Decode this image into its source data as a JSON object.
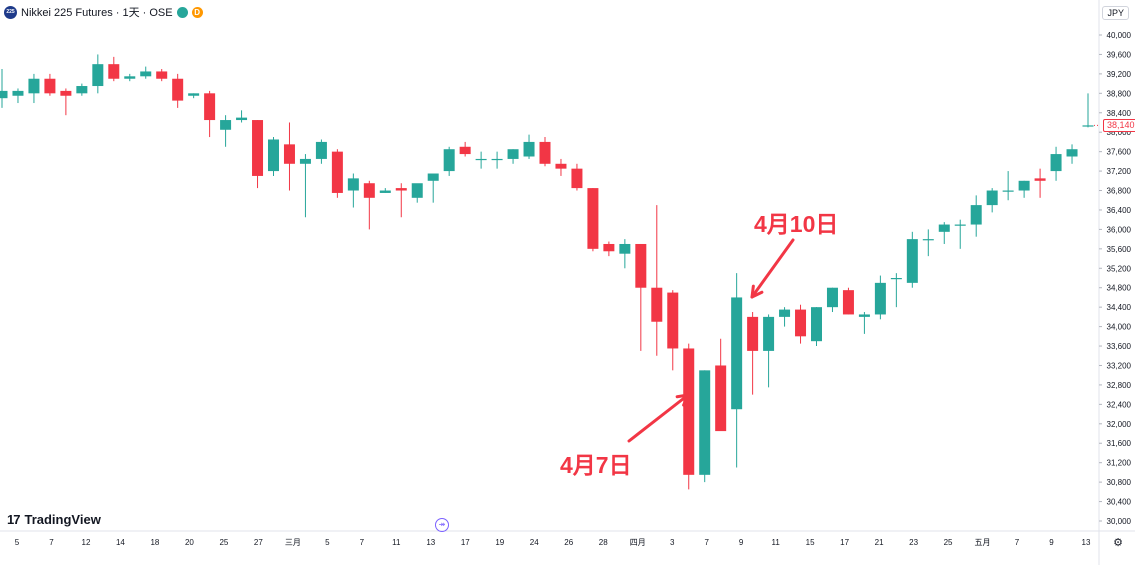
{
  "header": {
    "logo_text": "225",
    "title": "Nikkei 225 Futures · 1天 · OSE",
    "badge": "D"
  },
  "currency": "JPY",
  "last_price_label": "38,140",
  "brand": {
    "mark": "17",
    "name": "TradingView"
  },
  "goto_icon": "↠",
  "settings_icon": "⚙",
  "annotations": {
    "apr7": "4月7日",
    "apr10": "4月10日"
  },
  "colors": {
    "up": "#26a69a",
    "down": "#f23645",
    "annotation": "#f23645"
  },
  "chart_data": {
    "type": "candlestick",
    "y_axis": {
      "min": 30000,
      "max": 40000,
      "ticks": [
        "40,000",
        "39,600",
        "39,200",
        "38,800",
        "38,400",
        "38,000",
        "37,600",
        "37,200",
        "36,800",
        "36,400",
        "36,000",
        "35,600",
        "35,200",
        "34,800",
        "34,400",
        "34,000",
        "33,600",
        "33,200",
        "32,800",
        "32,400",
        "32,000",
        "31,600",
        "31,200",
        "30,800",
        "30,400",
        "30,000"
      ]
    },
    "x_ticks": [
      "5",
      "7",
      "12",
      "14",
      "18",
      "20",
      "25",
      "27",
      "三月",
      "5",
      "7",
      "11",
      "13",
      "17",
      "19",
      "24",
      "26",
      "28",
      "四月",
      "3",
      "7",
      "9",
      "11",
      "15",
      "17",
      "21",
      "23",
      "25",
      "五月",
      "7",
      "9",
      "13"
    ],
    "candles": [
      {
        "o": 38700,
        "h": 39300,
        "l": 38500,
        "c": 38850
      },
      {
        "o": 38750,
        "h": 38900,
        "l": 38600,
        "c": 38850
      },
      {
        "o": 38800,
        "h": 39200,
        "l": 38600,
        "c": 39100
      },
      {
        "o": 39100,
        "h": 39200,
        "l": 38750,
        "c": 38800
      },
      {
        "o": 38850,
        "h": 38900,
        "l": 38350,
        "c": 38750
      },
      {
        "o": 38800,
        "h": 39000,
        "l": 38750,
        "c": 38950
      },
      {
        "o": 38950,
        "h": 39600,
        "l": 38800,
        "c": 39400
      },
      {
        "o": 39400,
        "h": 39550,
        "l": 39050,
        "c": 39100
      },
      {
        "o": 39100,
        "h": 39200,
        "l": 39050,
        "c": 39150
      },
      {
        "o": 39150,
        "h": 39350,
        "l": 39100,
        "c": 39250
      },
      {
        "o": 39250,
        "h": 39300,
        "l": 39050,
        "c": 39100
      },
      {
        "o": 39100,
        "h": 39200,
        "l": 38500,
        "c": 38650
      },
      {
        "o": 38750,
        "h": 38800,
        "l": 38700,
        "c": 38800
      },
      {
        "o": 38800,
        "h": 38850,
        "l": 37900,
        "c": 38250
      },
      {
        "o": 38050,
        "h": 38350,
        "l": 37700,
        "c": 38250
      },
      {
        "o": 38250,
        "h": 38450,
        "l": 38200,
        "c": 38300
      },
      {
        "o": 38250,
        "h": 38250,
        "l": 36850,
        "c": 37100
      },
      {
        "o": 37200,
        "h": 37900,
        "l": 37100,
        "c": 37850
      },
      {
        "o": 37750,
        "h": 38200,
        "l": 36800,
        "c": 37350
      },
      {
        "o": 37350,
        "h": 37550,
        "l": 36250,
        "c": 37450
      },
      {
        "o": 37450,
        "h": 37850,
        "l": 37350,
        "c": 37800
      },
      {
        "o": 37600,
        "h": 37650,
        "l": 36650,
        "c": 36750
      },
      {
        "o": 36800,
        "h": 37150,
        "l": 36450,
        "c": 37050
      },
      {
        "o": 36950,
        "h": 37000,
        "l": 36000,
        "c": 36650
      },
      {
        "o": 36750,
        "h": 36850,
        "l": 36750,
        "c": 36800
      },
      {
        "o": 36850,
        "h": 36950,
        "l": 36250,
        "c": 36800
      },
      {
        "o": 36650,
        "h": 36850,
        "l": 36550,
        "c": 36950
      },
      {
        "o": 37000,
        "h": 37100,
        "l": 36550,
        "c": 37150
      },
      {
        "o": 37200,
        "h": 37700,
        "l": 37100,
        "c": 37650
      },
      {
        "o": 37700,
        "h": 37800,
        "l": 37500,
        "c": 37550
      },
      {
        "o": 37450,
        "h": 37600,
        "l": 37250,
        "c": 37450
      },
      {
        "o": 37450,
        "h": 37600,
        "l": 37250,
        "c": 37450
      },
      {
        "o": 37450,
        "h": 37650,
        "l": 37350,
        "c": 37650
      },
      {
        "o": 37500,
        "h": 37950,
        "l": 37450,
        "c": 37800
      },
      {
        "o": 37800,
        "h": 37900,
        "l": 37300,
        "c": 37350
      },
      {
        "o": 37350,
        "h": 37450,
        "l": 37100,
        "c": 37250
      },
      {
        "o": 37250,
        "h": 37350,
        "l": 36800,
        "c": 36850
      },
      {
        "o": 36850,
        "h": 36850,
        "l": 35550,
        "c": 35600
      },
      {
        "o": 35700,
        "h": 35750,
        "l": 35450,
        "c": 35550
      },
      {
        "o": 35500,
        "h": 35800,
        "l": 35200,
        "c": 35700
      },
      {
        "o": 35700,
        "h": 35700,
        "l": 33500,
        "c": 34800
      },
      {
        "o": 34800,
        "h": 36500,
        "l": 33400,
        "c": 34100
      },
      {
        "o": 34700,
        "h": 34750,
        "l": 33100,
        "c": 33550
      },
      {
        "o": 33550,
        "h": 33650,
        "l": 30650,
        "c": 30950
      },
      {
        "o": 30950,
        "h": 33100,
        "l": 30800,
        "c": 33100
      },
      {
        "o": 33200,
        "h": 33750,
        "l": 31900,
        "c": 31850
      },
      {
        "o": 32300,
        "h": 35100,
        "l": 31100,
        "c": 34600
      },
      {
        "o": 34200,
        "h": 34300,
        "l": 32600,
        "c": 33500
      },
      {
        "o": 33500,
        "h": 34250,
        "l": 32750,
        "c": 34200
      },
      {
        "o": 34200,
        "h": 34400,
        "l": 34000,
        "c": 34350
      },
      {
        "o": 34350,
        "h": 34450,
        "l": 33650,
        "c": 33800
      },
      {
        "o": 33700,
        "h": 34400,
        "l": 33600,
        "c": 34400
      },
      {
        "o": 34400,
        "h": 34800,
        "l": 34300,
        "c": 34800
      },
      {
        "o": 34750,
        "h": 34800,
        "l": 34250,
        "c": 34250
      },
      {
        "o": 34200,
        "h": 34300,
        "l": 33850,
        "c": 34250
      },
      {
        "o": 34250,
        "h": 35050,
        "l": 34150,
        "c": 34900
      },
      {
        "o": 35000,
        "h": 35100,
        "l": 34400,
        "c": 35000
      },
      {
        "o": 34900,
        "h": 35950,
        "l": 34800,
        "c": 35800
      },
      {
        "o": 35800,
        "h": 36000,
        "l": 35450,
        "c": 35800
      },
      {
        "o": 35950,
        "h": 36150,
        "l": 35700,
        "c": 36100
      },
      {
        "o": 36100,
        "h": 36200,
        "l": 35600,
        "c": 36100
      },
      {
        "o": 36100,
        "h": 36700,
        "l": 35850,
        "c": 36500
      },
      {
        "o": 36500,
        "h": 36850,
        "l": 36350,
        "c": 36800
      },
      {
        "o": 36800,
        "h": 37200,
        "l": 36600,
        "c": 36800
      },
      {
        "o": 36800,
        "h": 37000,
        "l": 36650,
        "c": 37000
      },
      {
        "o": 37050,
        "h": 37250,
        "l": 36650,
        "c": 37000
      },
      {
        "o": 37200,
        "h": 37700,
        "l": 37000,
        "c": 37550
      },
      {
        "o": 37500,
        "h": 37750,
        "l": 37350,
        "c": 37650
      },
      {
        "o": 38140,
        "h": 38800,
        "l": 38100,
        "c": 38140
      }
    ]
  }
}
